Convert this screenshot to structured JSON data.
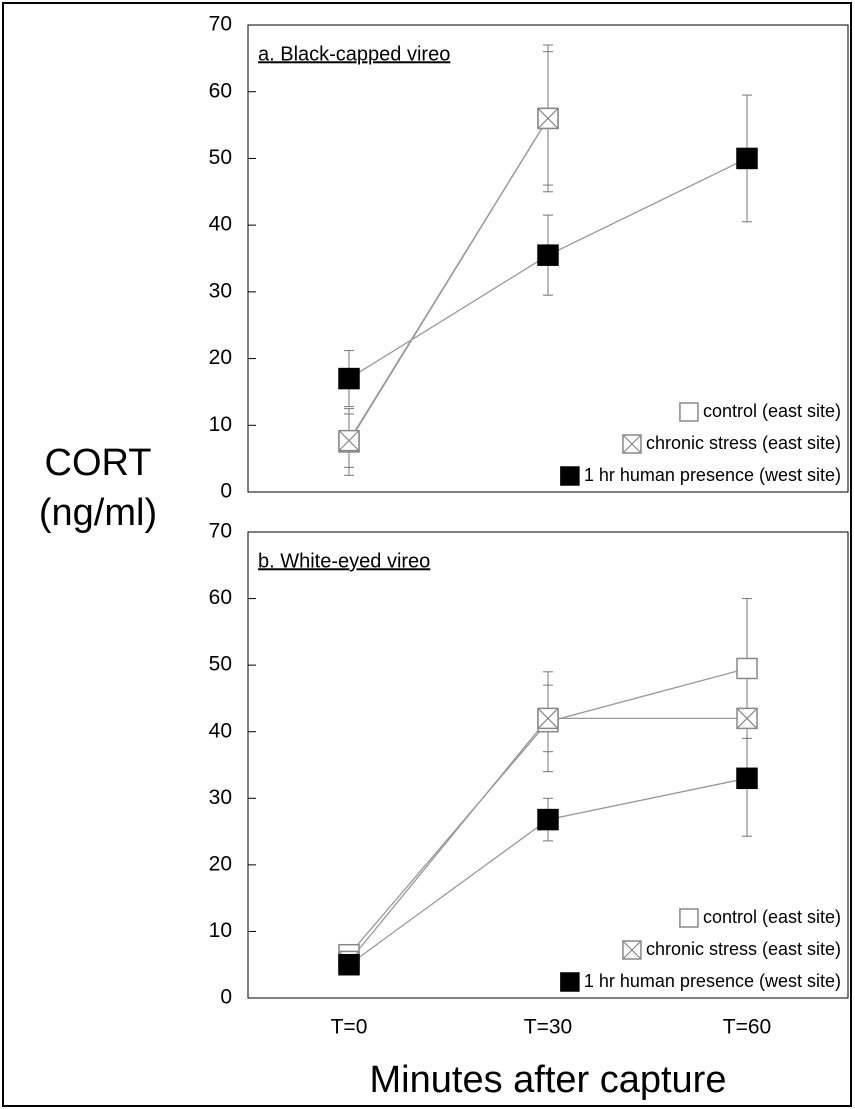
{
  "y_label": [
    "CORT",
    "(ng/ml)"
  ],
  "chart_data": [
    {
      "type": "line",
      "title": "a. Black-capped vireo",
      "categories": [
        null,
        null,
        null
      ],
      "ylim": [
        0,
        70
      ],
      "yticks": [
        0,
        10,
        20,
        30,
        40,
        50,
        60,
        70
      ],
      "legend": "lower right",
      "series": [
        {
          "name": "control (east site)",
          "color": "#ffffff",
          "marker": "square",
          "values": [
            7.5,
            56,
            null
          ],
          "errors": [
            5,
            11,
            null
          ]
        },
        {
          "name": "chronic stress (east site)",
          "color": "#ffffff",
          "marker": "square-x",
          "values": [
            7.7,
            56,
            null
          ],
          "errors": [
            4,
            10,
            null
          ]
        },
        {
          "name": "1 hr human presence (west site)",
          "color": "#000000",
          "marker": "square",
          "values": [
            17,
            35.5,
            50
          ],
          "errors": [
            4.2,
            6,
            9.5
          ]
        }
      ]
    },
    {
      "type": "line",
      "title": "b. White-eyed vireo",
      "x_label": "Minutes after capture",
      "categories": [
        "T=0",
        "T=30",
        "T=60"
      ],
      "ylim": [
        0,
        70
      ],
      "yticks": [
        0,
        10,
        20,
        30,
        40,
        50,
        60,
        70
      ],
      "legend": "lower right",
      "series": [
        {
          "name": "control (east site)",
          "color": "#ffffff",
          "marker": "square",
          "values": [
            6.5,
            41.5,
            49.5
          ],
          "errors": [
            1,
            7.5,
            10.5
          ]
        },
        {
          "name": "chronic stress (east site)",
          "color": "#ffffff",
          "marker": "square-x",
          "values": [
            5.5,
            42,
            42
          ],
          "errors": [
            1,
            5,
            8
          ]
        },
        {
          "name": "1 hr human presence (west site)",
          "color": "#000000",
          "marker": "square",
          "values": [
            5,
            26.8,
            33
          ],
          "errors": [
            1,
            3.2,
            8.7
          ]
        }
      ]
    }
  ]
}
